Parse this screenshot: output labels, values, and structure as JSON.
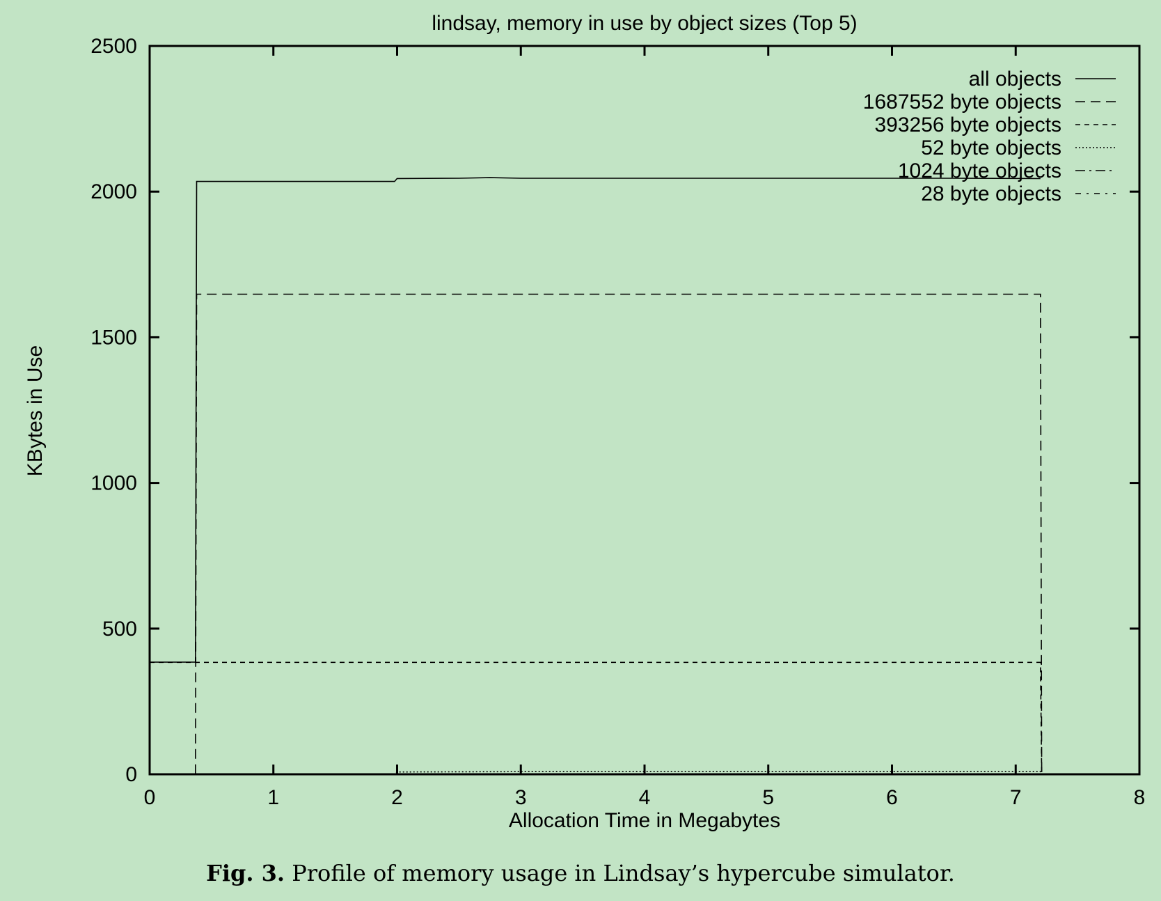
{
  "chart_data": {
    "type": "line",
    "title": "lindsay, memory in use by object sizes (Top 5)",
    "xlabel": "Allocation Time in Megabytes",
    "ylabel": "KBytes in Use",
    "xlim": [
      0,
      8
    ],
    "ylim": [
      0,
      2500
    ],
    "xticks": [
      "0",
      "1",
      "2",
      "3",
      "4",
      "5",
      "6",
      "7",
      "8"
    ],
    "yticks": [
      "0",
      "500",
      "1000",
      "1500",
      "2000",
      "2500"
    ],
    "grid": false,
    "legend_position": "top-right",
    "series": [
      {
        "name": "all objects",
        "style": "solid",
        "points": [
          [
            0,
            385
          ],
          [
            0.37,
            385
          ],
          [
            0.38,
            2035
          ],
          [
            1.98,
            2035
          ],
          [
            2.0,
            2045
          ],
          [
            2.5,
            2046
          ],
          [
            2.75,
            2048
          ],
          [
            3.0,
            2046
          ],
          [
            4.0,
            2046
          ],
          [
            5.0,
            2046
          ],
          [
            6.0,
            2046
          ],
          [
            6.5,
            2046
          ],
          [
            7.2,
            2045
          ]
        ]
      },
      {
        "name": "1687552 byte objects",
        "style": "dash-long",
        "points": [
          [
            0,
            0
          ],
          [
            0.37,
            0
          ],
          [
            0.38,
            1648
          ],
          [
            7.2,
            1648
          ],
          [
            7.21,
            0
          ]
        ]
      },
      {
        "name": "393256 byte objects",
        "style": "dash-short",
        "points": [
          [
            0,
            384
          ],
          [
            7.2,
            384
          ],
          [
            7.21,
            0
          ]
        ]
      },
      {
        "name": "52 byte objects",
        "style": "dotted",
        "points": [
          [
            0,
            0
          ],
          [
            1.98,
            0
          ],
          [
            2.0,
            8
          ],
          [
            3.0,
            9
          ],
          [
            4.0,
            9
          ],
          [
            5.0,
            9
          ],
          [
            6.0,
            9
          ],
          [
            7.2,
            9
          ],
          [
            7.21,
            0
          ]
        ]
      },
      {
        "name": "1024 byte objects",
        "style": "dash-dot",
        "points": [
          [
            0,
            0
          ],
          [
            7.2,
            0
          ]
        ]
      },
      {
        "name": "28 byte objects",
        "style": "dash-dot-sparse",
        "points": [
          [
            0,
            0
          ],
          [
            7.2,
            0
          ]
        ]
      }
    ]
  },
  "caption": {
    "label": "Fig. 3.",
    "text": "Profile of memory usage in Lindsay’s hypercube simulator."
  }
}
